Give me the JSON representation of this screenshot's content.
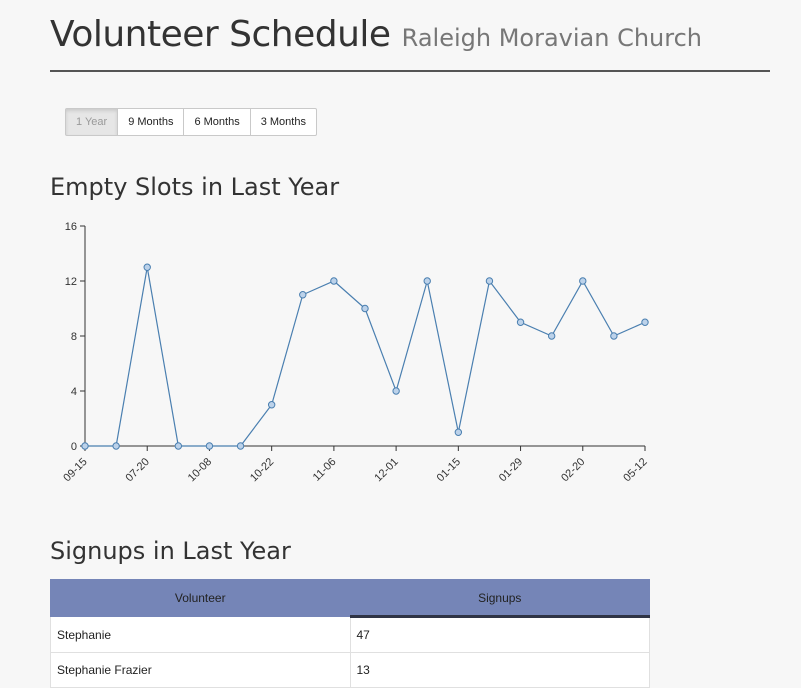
{
  "header": {
    "title": "Volunteer Schedule",
    "subtitle": "Raleigh Moravian Church"
  },
  "range_buttons": [
    {
      "label": "1 Year",
      "active": true
    },
    {
      "label": "9 Months",
      "active": false
    },
    {
      "label": "6 Months",
      "active": false
    },
    {
      "label": "3 Months",
      "active": false
    }
  ],
  "chart_section": {
    "title": "Empty Slots in Last Year"
  },
  "chart_data": {
    "type": "line",
    "title": "Empty Slots in Last Year",
    "xlabel": "",
    "ylabel": "",
    "ylim": [
      0,
      16
    ],
    "yticks": [
      0,
      4,
      8,
      12,
      16
    ],
    "x_tick_labels": [
      "09-15",
      "07-20",
      "10-08",
      "10-22",
      "11-06",
      "12-01",
      "01-15",
      "01-29",
      "02-20",
      "05-12"
    ],
    "values": [
      0,
      0,
      13,
      0,
      0,
      0,
      3,
      11,
      12,
      10,
      4,
      12,
      1,
      12,
      9,
      8,
      12,
      8,
      9
    ],
    "tick_at_index": [
      0,
      2,
      4,
      6,
      8,
      10,
      12,
      14,
      16,
      18
    ],
    "line_color": "#4a7fb0",
    "point_fill": "#bcd2ea",
    "grid": false
  },
  "table_section": {
    "title": "Signups in Last Year"
  },
  "signups_table": {
    "columns": [
      "Volunteer",
      "Signups"
    ],
    "rows": [
      {
        "name": "Stephanie",
        "signups": "47"
      },
      {
        "name": "Stephanie Frazier",
        "signups": "13"
      }
    ]
  },
  "colors": {
    "table_header": "#7585b7",
    "accent_line": "#4a7fb0"
  }
}
